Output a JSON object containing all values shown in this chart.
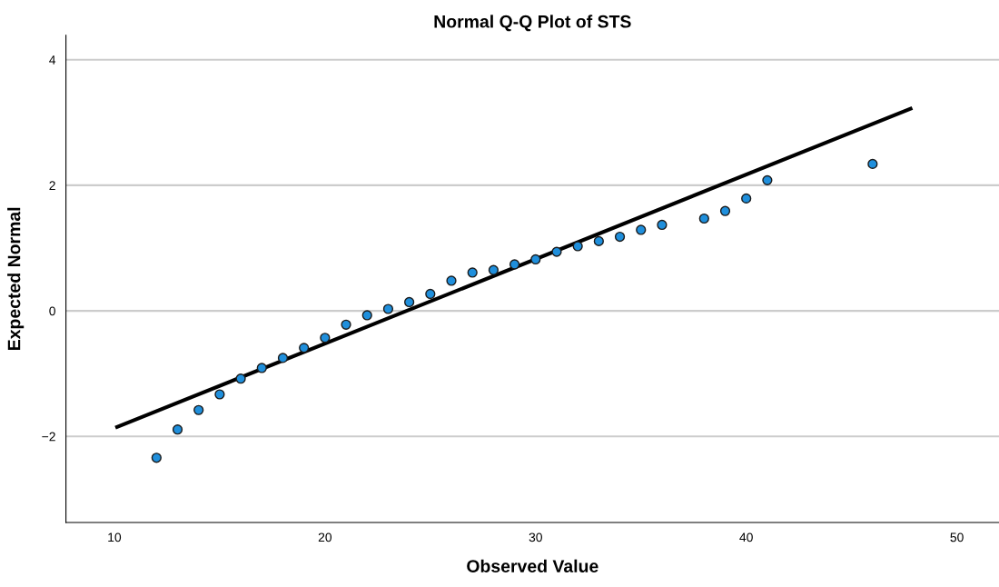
{
  "chart_data": {
    "type": "scatter",
    "title": "Normal Q-Q Plot of STS",
    "xlabel": "Observed Value",
    "ylabel": "Expected Normal",
    "xlim": [
      7.7,
      52
    ],
    "ylim": [
      -3.37,
      4.39
    ],
    "xticks": [
      10,
      20,
      30,
      40,
      50
    ],
    "yticks": [
      -2,
      0,
      2,
      4
    ],
    "grid": "y",
    "series": [
      {
        "marker": "circle",
        "color": "#1f8fdc",
        "x": [
          12,
          13,
          14,
          15,
          16,
          17,
          18,
          19,
          20,
          21,
          22,
          23,
          24,
          25,
          26,
          27,
          28,
          29,
          30,
          31,
          32,
          33,
          34,
          35,
          36,
          38,
          39,
          40,
          41,
          46
        ],
        "values": [
          -2.34,
          -1.89,
          -1.58,
          -1.33,
          -1.08,
          -0.91,
          -0.75,
          -0.59,
          -0.43,
          -0.22,
          -0.07,
          0.03,
          0.14,
          0.27,
          0.48,
          0.61,
          0.65,
          0.74,
          0.82,
          0.94,
          1.03,
          1.11,
          1.18,
          1.29,
          1.37,
          1.47,
          1.59,
          1.79,
          2.08,
          2.34
        ]
      },
      {
        "type": "line",
        "color": "#000000",
        "x": [
          10.13,
          47.8
        ],
        "values": [
          -1.85,
          3.22
        ]
      }
    ]
  }
}
